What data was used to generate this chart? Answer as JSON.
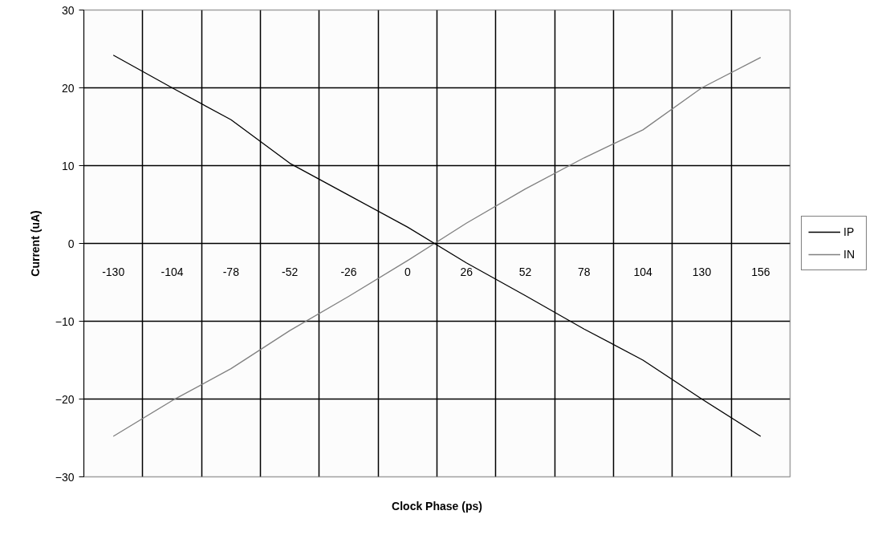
{
  "chart_data": {
    "type": "line",
    "xlabel": "Clock Phase (ps)",
    "ylabel": "Current (uA)",
    "categories": [
      "-130",
      "-104",
      "-78",
      "-52",
      "-26",
      "0",
      "26",
      "52",
      "78",
      "104",
      "130",
      "156"
    ],
    "series": [
      {
        "name": "IP",
        "color": "#000000",
        "values": [
          24.2,
          20.0,
          15.9,
          10.3,
          6.2,
          2.1,
          -2.5,
          -6.7,
          -11.0,
          -15.0,
          -20.0,
          -24.8
        ]
      },
      {
        "name": "IN",
        "color": "#808080",
        "values": [
          -24.8,
          -20.2,
          -16.1,
          -11.2,
          -6.8,
          -2.2,
          2.6,
          7.0,
          11.0,
          14.6,
          20.0,
          23.9
        ]
      }
    ],
    "ylim": [
      -30,
      30
    ],
    "yticks": [
      -30,
      -20,
      -10,
      0,
      10,
      20,
      30
    ],
    "grid": true,
    "legend": "right"
  }
}
